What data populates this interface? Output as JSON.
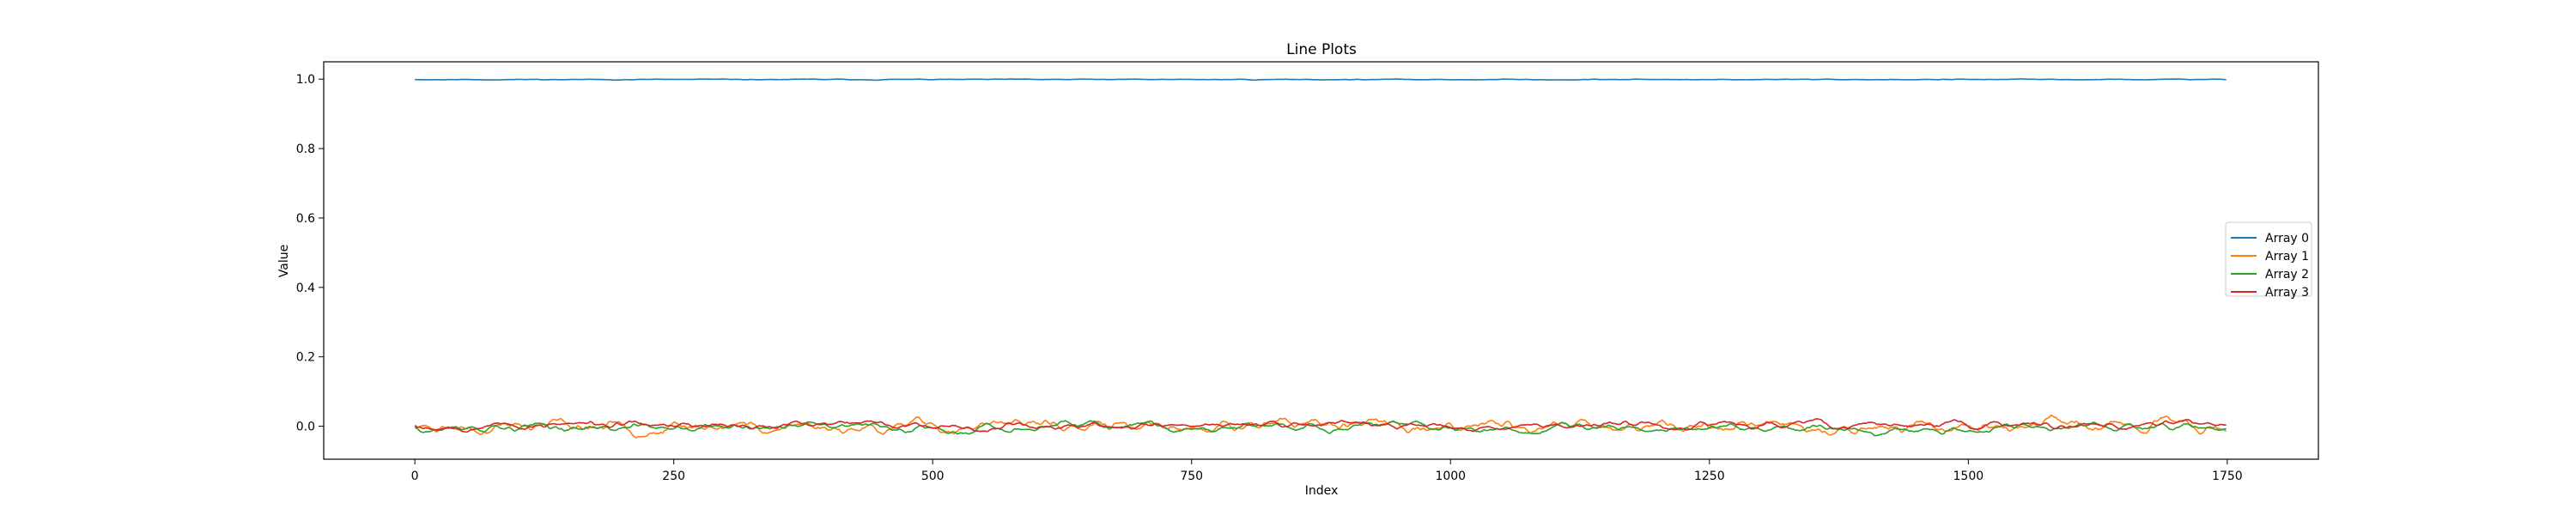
{
  "chart_data": {
    "type": "line",
    "title": "Line Plots",
    "xlabel": "Index",
    "ylabel": "Value",
    "xlim": [
      -88,
      1838
    ],
    "ylim": [
      -0.095,
      1.05
    ],
    "xticks": [
      0,
      250,
      500,
      750,
      1000,
      1250,
      1500,
      1750
    ],
    "yticks": [
      0.0,
      0.2,
      0.4,
      0.6,
      0.8,
      1.0
    ],
    "xtick_labels": [
      "0",
      "250",
      "500",
      "750",
      "1000",
      "1250",
      "1500",
      "1750"
    ],
    "ytick_labels": [
      "0.0",
      "0.2",
      "0.4",
      "0.6",
      "0.8",
      "1.0"
    ],
    "grid": false,
    "legend_position": "center-right",
    "x_range": [
      0,
      1749
    ],
    "point_count": 1750,
    "series": [
      {
        "name": "Array 0",
        "color": "#1f77b4",
        "base": 0.999,
        "amplitude": 0.0007,
        "seed": 11
      },
      {
        "name": "Array 1",
        "color": "#ff7f0e",
        "base": 0.0,
        "amplitude": 0.012,
        "seed": 23
      },
      {
        "name": "Array 2",
        "color": "#2ca02c",
        "base": -0.004,
        "amplitude": 0.008,
        "seed": 37
      },
      {
        "name": "Array 3",
        "color": "#d62728",
        "base": 0.003,
        "amplitude": 0.007,
        "seed": 53
      }
    ]
  }
}
